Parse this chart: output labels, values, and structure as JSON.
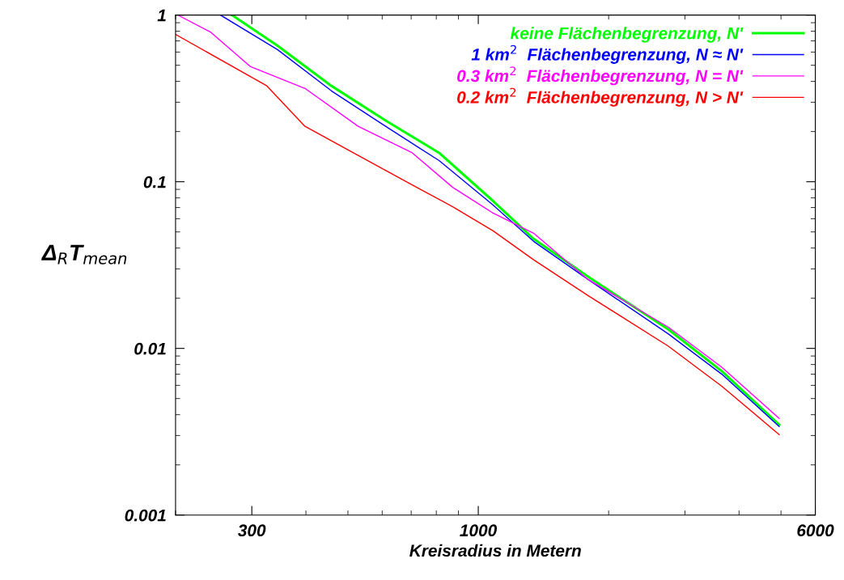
{
  "chart_data": {
    "type": "line",
    "xlabel": "Kreisradius in Metern",
    "ylabel": "Δ$_{R}$T$_{mean}$",
    "log": "xy",
    "grid": false,
    "legend": "top right",
    "xlim": [
      200,
      6000
    ],
    "xticks": [
      300,
      1000,
      6000
    ],
    "ylim": [
      0.001,
      1
    ],
    "yticks": [
      0.001,
      0.01,
      0.1,
      1
    ],
    "series": [
      {
        "name": "keine Flächenbegrenzung, N'",
        "color": "#00ff00",
        "x": [
          270,
          344,
          458,
          611,
          812,
          1082,
          1342,
          1789,
          2748,
          3650,
          4952
        ],
        "values": [
          1,
          0.655,
          0.376,
          0.233,
          0.149,
          0.0766,
          0.0454,
          0.027,
          0.013,
          0.0073,
          0.00348
        ]
      },
      {
        "name": "1 km$^{2}$  Flächenbegrenzung, N ≈ N'",
        "color": "#0000ff",
        "x": [
          254,
          344,
          458,
          611,
          812,
          1082,
          1342,
          1789,
          2748,
          3650,
          4952
        ],
        "values": [
          1,
          0.62,
          0.351,
          0.215,
          0.134,
          0.0724,
          0.0439,
          0.026,
          0.0122,
          0.007,
          0.0034
        ]
      },
      {
        "name": "0.3 km$^{2}$  Flächenbegrenzung, N = N'",
        "color": "#ff00ff",
        "x": [
          204,
          241,
          298,
          398,
          528,
          704,
          873,
          1082,
          1342,
          1789,
          2748,
          3650,
          4952
        ],
        "values": [
          0.99,
          0.79,
          0.49,
          0.363,
          0.215,
          0.149,
          0.0925,
          0.0648,
          0.0491,
          0.026,
          0.0134,
          0.0077,
          0.0038
        ]
      },
      {
        "name": "0.2 km$^{2}$  Flächenbegrenzung, N > N'",
        "color": "#ff0000",
        "x": [
          200,
          325,
          398,
          528,
          704,
          873,
          1082,
          1342,
          1789,
          2748,
          3650,
          4952
        ],
        "values": [
          0.766,
          0.376,
          0.215,
          0.144,
          0.0956,
          0.0708,
          0.0507,
          0.034,
          0.0208,
          0.0103,
          0.00593,
          0.00304
        ]
      }
    ]
  }
}
